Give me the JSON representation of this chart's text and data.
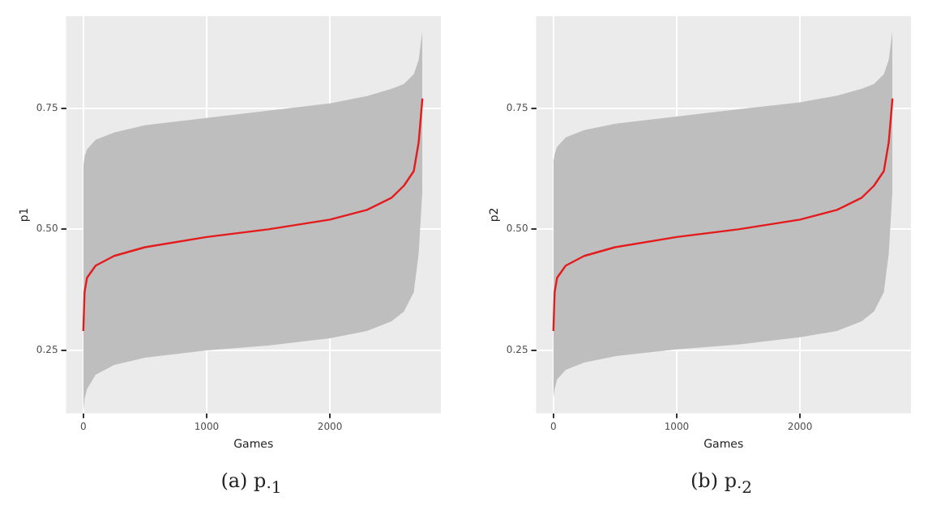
{
  "chart_data": [
    {
      "type": "line",
      "title": "(a) p$_{·1}$",
      "xlabel": "Games",
      "ylabel": "p1",
      "x": [
        0,
        10,
        30,
        100,
        250,
        500,
        1000,
        1500,
        2000,
        2300,
        2500,
        2600,
        2680,
        2720,
        2750
      ],
      "series": [
        {
          "color": "#e41a1c",
          "values": [
            0.29,
            0.37,
            0.4,
            0.425,
            0.445,
            0.463,
            0.484,
            0.5,
            0.52,
            0.54,
            0.565,
            0.59,
            0.62,
            0.68,
            0.77
          ],
          "lower": [
            0.12,
            0.15,
            0.17,
            0.2,
            0.22,
            0.235,
            0.25,
            0.26,
            0.275,
            0.29,
            0.31,
            0.33,
            0.37,
            0.45,
            0.58
          ],
          "upper": [
            0.63,
            0.65,
            0.665,
            0.685,
            0.7,
            0.715,
            0.73,
            0.745,
            0.76,
            0.775,
            0.79,
            0.8,
            0.82,
            0.85,
            0.91
          ]
        }
      ],
      "xlim": [
        -140,
        2900
      ],
      "xticks": [
        0,
        1000,
        2000
      ],
      "ylim": [
        0.12,
        0.94
      ],
      "yticks": [
        {
          "value": 0.25,
          "label": "0.25"
        },
        {
          "value": 0.5,
          "label": "0.50"
        },
        {
          "value": 0.75,
          "label": "0.75"
        }
      ],
      "grid": true,
      "legend": false,
      "marker": "none",
      "line_style": "solid"
    },
    {
      "type": "line",
      "title": "(b) p$_{·2}$",
      "xlabel": "Games",
      "ylabel": "p2",
      "x": [
        0,
        10,
        30,
        100,
        250,
        500,
        1000,
        1500,
        2000,
        2300,
        2500,
        2600,
        2680,
        2720,
        2750
      ],
      "series": [
        {
          "color": "#e41a1c",
          "values": [
            0.29,
            0.37,
            0.4,
            0.425,
            0.445,
            0.463,
            0.484,
            0.5,
            0.52,
            0.54,
            0.565,
            0.59,
            0.62,
            0.68,
            0.77
          ],
          "lower": [
            0.15,
            0.17,
            0.19,
            0.21,
            0.225,
            0.238,
            0.252,
            0.262,
            0.277,
            0.29,
            0.31,
            0.33,
            0.37,
            0.45,
            0.58
          ],
          "upper": [
            0.64,
            0.655,
            0.67,
            0.69,
            0.705,
            0.718,
            0.733,
            0.748,
            0.762,
            0.776,
            0.79,
            0.8,
            0.82,
            0.85,
            0.91
          ]
        }
      ],
      "xlim": [
        -140,
        2900
      ],
      "xticks": [
        0,
        1000,
        2000
      ],
      "ylim": [
        0.12,
        0.94
      ],
      "yticks": [
        {
          "value": 0.25,
          "label": "0.25"
        },
        {
          "value": 0.5,
          "label": "0.50"
        },
        {
          "value": 0.75,
          "label": "0.75"
        }
      ],
      "grid": true,
      "legend": false,
      "marker": "none",
      "line_style": "solid"
    }
  ]
}
